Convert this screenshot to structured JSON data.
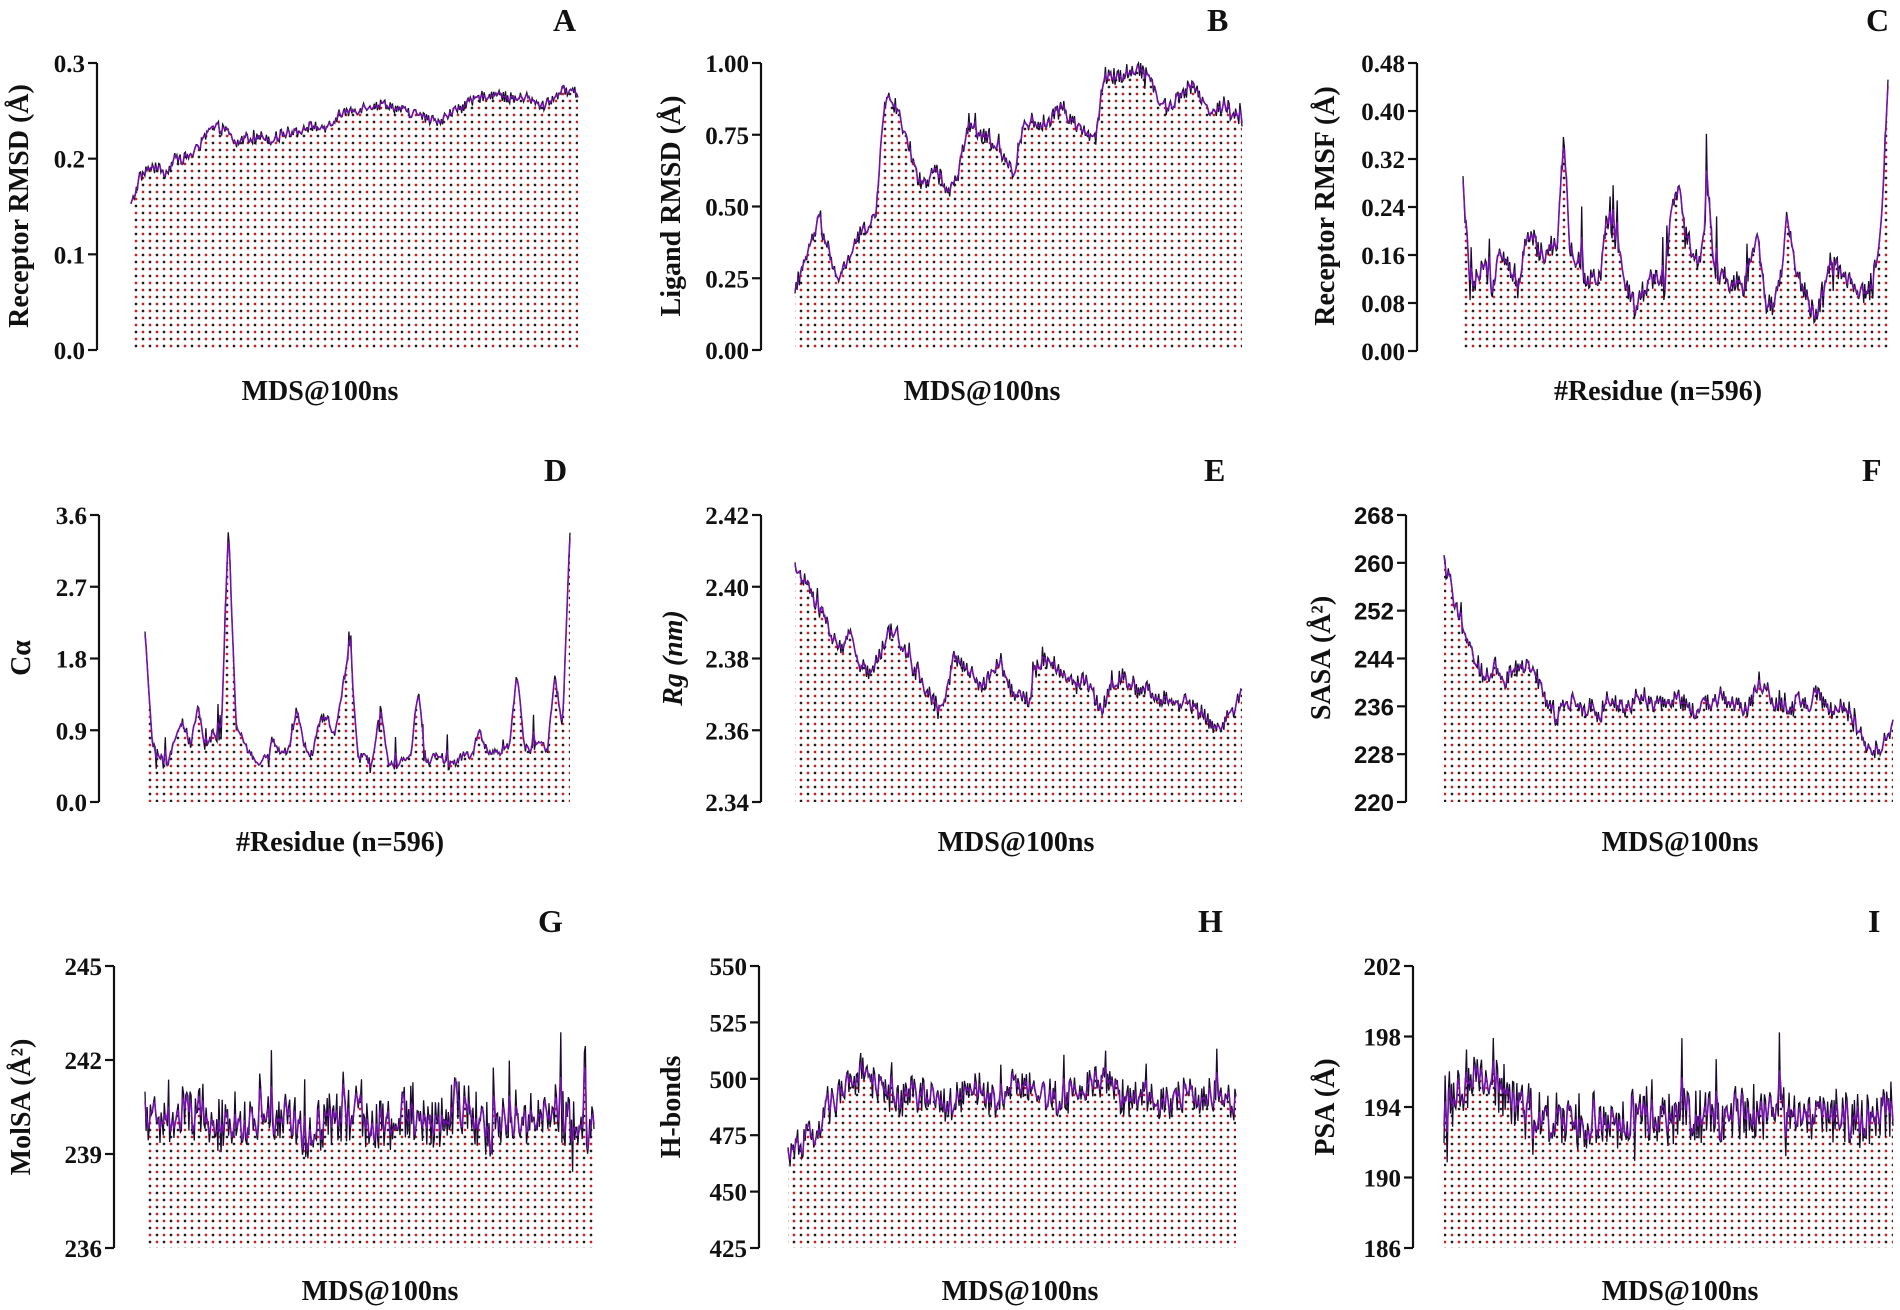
{
  "figure": {
    "line_colors": {
      "primary": "#7a12b5",
      "secondary": "#1a0a2e"
    },
    "fill_pattern_colors": {
      "dot_dark": "#2a1a1a",
      "dot_red": "#cc1f1f"
    }
  },
  "chart_data": [
    {
      "id": "A",
      "panel_label": "A",
      "type": "area",
      "title": "",
      "xlabel": "MDS@100ns",
      "ylabel": "Receptor RMSD (Å)",
      "ylim": [
        0.0,
        0.3
      ],
      "yticks": [
        "0.0",
        "0.1",
        "0.2",
        "0.3"
      ],
      "ytick_values": [
        0.0,
        0.1,
        0.2,
        0.3
      ],
      "tick_font": "serif",
      "noise": 0.006,
      "spike": 0.004,
      "values": [
        0.15,
        0.18,
        0.19,
        0.19,
        0.185,
        0.2,
        0.2,
        0.205,
        0.215,
        0.23,
        0.233,
        0.228,
        0.215,
        0.222,
        0.22,
        0.224,
        0.22,
        0.225,
        0.228,
        0.23,
        0.232,
        0.235,
        0.228,
        0.238,
        0.245,
        0.25,
        0.252,
        0.256,
        0.255,
        0.258,
        0.254,
        0.25,
        0.248,
        0.245,
        0.24,
        0.238,
        0.245,
        0.25,
        0.255,
        0.26,
        0.265,
        0.268,
        0.266,
        0.264,
        0.262,
        0.265,
        0.258,
        0.255,
        0.262,
        0.27,
        0.272,
        0.268
      ]
    },
    {
      "id": "B",
      "panel_label": "B",
      "type": "area",
      "title": "",
      "xlabel": "MDS@100ns",
      "ylabel": "Ligand RMSD (Å)",
      "ylim": [
        0.0,
        1.0
      ],
      "yticks": [
        "0.00",
        "0.25",
        "0.50",
        "0.75",
        "1.00"
      ],
      "ytick_values": [
        0.0,
        0.25,
        0.5,
        0.75,
        1.0
      ],
      "tick_font": "serif",
      "noise": 0.03,
      "spike": 0.05,
      "values": [
        0.2,
        0.28,
        0.38,
        0.45,
        0.35,
        0.25,
        0.28,
        0.35,
        0.4,
        0.44,
        0.47,
        0.88,
        0.86,
        0.8,
        0.72,
        0.6,
        0.58,
        0.62,
        0.6,
        0.55,
        0.6,
        0.76,
        0.78,
        0.75,
        0.72,
        0.7,
        0.65,
        0.62,
        0.78,
        0.8,
        0.78,
        0.8,
        0.82,
        0.85,
        0.8,
        0.78,
        0.75,
        0.73,
        0.96,
        0.95,
        0.96,
        0.97,
        0.98,
        0.97,
        0.93,
        0.86,
        0.84,
        0.88,
        0.9,
        0.93,
        0.88,
        0.82,
        0.84,
        0.86,
        0.82,
        0.8
      ]
    },
    {
      "id": "C",
      "panel_label": "C",
      "type": "area",
      "title": "",
      "xlabel": "#Residue (n=596)",
      "ylabel": "Receptor RMSF (Å)",
      "ylim": [
        0.0,
        0.48
      ],
      "yticks": [
        "0.00",
        "0.08",
        "0.16",
        "0.24",
        "0.32",
        "0.40",
        "0.48"
      ],
      "ytick_values": [
        0.0,
        0.08,
        0.16,
        0.24,
        0.32,
        0.4,
        0.48
      ],
      "tick_font": "serif",
      "noise": 0.02,
      "spike": 0.09,
      "values": [
        0.28,
        0.1,
        0.12,
        0.14,
        0.1,
        0.18,
        0.15,
        0.13,
        0.12,
        0.2,
        0.18,
        0.16,
        0.18,
        0.17,
        0.36,
        0.14,
        0.15,
        0.12,
        0.13,
        0.12,
        0.22,
        0.19,
        0.14,
        0.1,
        0.07,
        0.1,
        0.12,
        0.13,
        0.1,
        0.24,
        0.26,
        0.2,
        0.16,
        0.14,
        0.28,
        0.12,
        0.13,
        0.11,
        0.12,
        0.1,
        0.16,
        0.18,
        0.08,
        0.07,
        0.12,
        0.22,
        0.14,
        0.11,
        0.08,
        0.06,
        0.09,
        0.15,
        0.14,
        0.12,
        0.11,
        0.1,
        0.09,
        0.13,
        0.19,
        0.46
      ]
    },
    {
      "id": "D",
      "panel_label": "D",
      "type": "area",
      "title": "",
      "xlabel": "#Residue (n=596)",
      "ylabel": "Cα",
      "ylim": [
        0.0,
        3.6
      ],
      "yticks": [
        "0.0",
        "0.9",
        "1.8",
        "2.7",
        "3.6"
      ],
      "ytick_values": [
        0.0,
        0.9,
        1.8,
        2.7,
        3.6
      ],
      "tick_font": "serif",
      "noise": 0.06,
      "spike": 0.35,
      "values": [
        2.1,
        0.7,
        0.55,
        0.45,
        0.8,
        1.0,
        0.7,
        1.2,
        0.6,
        0.9,
        0.7,
        3.5,
        0.9,
        0.8,
        0.6,
        0.5,
        0.55,
        0.75,
        0.6,
        0.65,
        1.2,
        0.7,
        0.6,
        1.0,
        1.1,
        0.8,
        1.4,
        2.0,
        0.6,
        0.55,
        0.5,
        1.2,
        0.5,
        0.45,
        0.55,
        0.6,
        1.4,
        0.5,
        0.55,
        0.6,
        0.45,
        0.5,
        0.6,
        0.55,
        0.9,
        0.65,
        0.6,
        0.65,
        0.7,
        1.6,
        0.7,
        0.65,
        0.8,
        0.6,
        1.6,
        0.9,
        3.4
      ]
    },
    {
      "id": "E",
      "panel_label": "E",
      "type": "area",
      "title": "",
      "xlabel": "MDS@100ns",
      "ylabel": "Rg (nm)",
      "ylim": [
        2.34,
        2.42
      ],
      "yticks": [
        "2.34",
        "2.36",
        "2.38",
        "2.40",
        "2.42"
      ],
      "ytick_values": [
        2.34,
        2.36,
        2.38,
        2.4,
        2.42
      ],
      "tick_font": "serif",
      "noise": 0.0025,
      "spike": 0.004,
      "values": [
        2.405,
        2.402,
        2.396,
        2.392,
        2.386,
        2.382,
        2.388,
        2.378,
        2.376,
        2.38,
        2.388,
        2.386,
        2.382,
        2.376,
        2.372,
        2.368,
        2.366,
        2.38,
        2.378,
        2.376,
        2.372,
        2.376,
        2.38,
        2.372,
        2.37,
        2.368,
        2.378,
        2.38,
        2.378,
        2.376,
        2.372,
        2.374,
        2.37,
        2.366,
        2.372,
        2.375,
        2.374,
        2.37,
        2.372,
        2.368,
        2.37,
        2.366,
        2.368,
        2.366,
        2.364,
        2.36,
        2.362,
        2.366,
        2.37
      ]
    },
    {
      "id": "F",
      "panel_label": "F",
      "type": "area",
      "title": "",
      "xlabel": "MDS@100ns",
      "ylabel": "SASA (Å²)",
      "ylim": [
        220,
        268
      ],
      "yticks": [
        "220",
        "228",
        "236",
        "244",
        "252",
        "260",
        "268"
      ],
      "ytick_values": [
        220,
        228,
        236,
        244,
        252,
        260,
        268
      ],
      "tick_font": "sans",
      "noise": 1.6,
      "spike": 2.6,
      "values": [
        260,
        255,
        250,
        246,
        242,
        241,
        243,
        240,
        242,
        243,
        242,
        241,
        236,
        234,
        236,
        237,
        235,
        236,
        234,
        238,
        236,
        235,
        237,
        238,
        236,
        237,
        236,
        238,
        236,
        235,
        237,
        236,
        238,
        237,
        236,
        235,
        238,
        240,
        237,
        236,
        235,
        237,
        236,
        238,
        237,
        235,
        236,
        234,
        232,
        229,
        228,
        230,
        233
      ]
    },
    {
      "id": "G",
      "panel_label": "G",
      "type": "area",
      "title": "",
      "xlabel": "MDS@100ns",
      "ylabel": "MolSA (Å²)",
      "ylim": [
        236,
        245
      ],
      "yticks": [
        "236",
        "239",
        "242",
        "245"
      ],
      "ytick_values": [
        236,
        239,
        242,
        245
      ],
      "tick_font": "serif",
      "noise": 0.9,
      "spike": 1.6,
      "values": [
        240.2,
        240.0,
        239.8,
        240.4,
        240.2,
        240.6,
        240.0,
        239.8,
        240.2,
        240.0,
        240.4,
        239.8,
        240.2,
        240.0,
        239.6,
        239.8,
        240.2,
        240.0,
        240.4,
        240.2,
        240.0,
        239.8,
        240.2,
        240.4,
        240.0,
        239.8,
        240.2,
        240.6,
        240.4,
        240.0,
        239.8,
        240.2,
        240.4,
        240.0,
        240.2,
        240.6,
        240.2,
        240.0,
        239.8,
        240.0
      ]
    },
    {
      "id": "H",
      "panel_label": "H",
      "type": "area",
      "title": "",
      "xlabel": "MDS@100ns",
      "ylabel": "H-bonds",
      "ylim": [
        425,
        550
      ],
      "yticks": [
        "425",
        "450",
        "475",
        "500",
        "525",
        "550"
      ],
      "ytick_values": [
        425,
        450,
        475,
        500,
        525,
        550
      ],
      "tick_font": "serif",
      "noise": 8,
      "spike": 14,
      "values": [
        462,
        470,
        475,
        472,
        485,
        490,
        495,
        500,
        503,
        498,
        494,
        492,
        490,
        494,
        492,
        496,
        490,
        488,
        492,
        494,
        496,
        492,
        490,
        494,
        500,
        498,
        496,
        494,
        492,
        490,
        494,
        498,
        500,
        498,
        496,
        492,
        490,
        494,
        492,
        490,
        488,
        492,
        494,
        490,
        492,
        494,
        490,
        488
      ]
    },
    {
      "id": "I",
      "panel_label": "I",
      "type": "area",
      "title": "",
      "xlabel": "MDS@100ns",
      "ylabel": "PSA (Å)",
      "ylim": [
        186,
        202
      ],
      "yticks": [
        "186",
        "190",
        "194",
        "198",
        "202"
      ],
      "ytick_values": [
        186,
        190,
        194,
        198,
        202
      ],
      "tick_font": "serif",
      "noise": 1.6,
      "spike": 2.8,
      "values": [
        193.5,
        194.5,
        195.5,
        196.0,
        195.5,
        195.0,
        194.5,
        194.0,
        193.8,
        193.5,
        193.5,
        193.2,
        193.0,
        193.5,
        193.2,
        193.0,
        193.4,
        193.6,
        193.2,
        193.0,
        193.4,
        193.8,
        193.6,
        193.4,
        193.2,
        193.6,
        193.8,
        193.6,
        193.4,
        193.8,
        194.0,
        193.6,
        193.4,
        193.2,
        193.6,
        193.4,
        193.2,
        193.4,
        193.6,
        193.2
      ]
    }
  ]
}
